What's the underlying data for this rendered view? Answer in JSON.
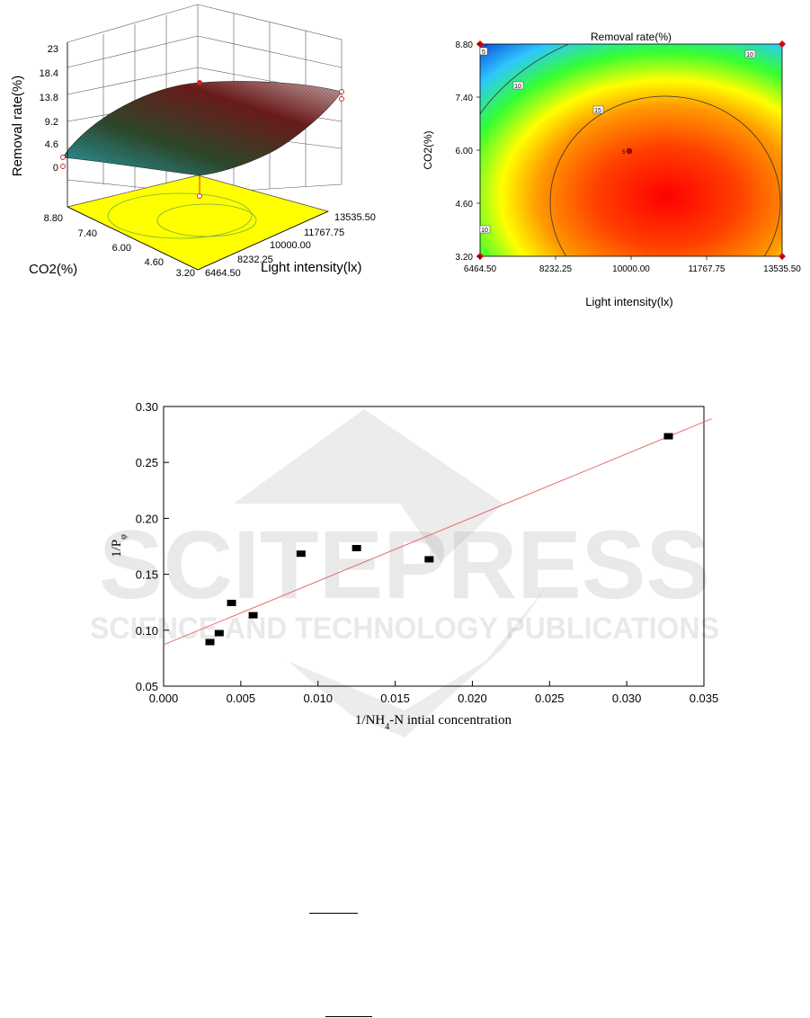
{
  "charts": {
    "surface": {
      "z_label": "Removal rate(%)",
      "z_ticks": [
        "23",
        "18.4",
        "13.8",
        "9.2",
        "4.6",
        "0"
      ],
      "co2_label": "CO2(%)",
      "co2_ticks": [
        "8.80",
        "7.40",
        "6.00",
        "4.60",
        "3.20"
      ],
      "light_label": "Light intensity(lx)",
      "light_ticks": [
        "13535.50",
        "11767.75",
        "10000.00",
        "8232.25",
        "6464.50"
      ],
      "surface_colors": [
        "#2aa6b5",
        "#2e4a2c",
        "#6e1c1c",
        "#c9a7a7"
      ],
      "floor_color": "#ffff00"
    },
    "contour": {
      "title": "Removal rate(%)",
      "x_label": "Light intensity(lx)",
      "y_label": "CO2(%)",
      "x_ticks": [
        "6464.50",
        "8232.25",
        "10000.00",
        "11767.75",
        "13535.50"
      ],
      "y_ticks": [
        "8.80",
        "7.40",
        "6.00",
        "4.60",
        "3.20"
      ],
      "contour_labels": [
        "5",
        "10",
        "10",
        "15",
        "10"
      ],
      "center_label": "5",
      "colors": [
        "#0a4dd8",
        "#2ec7ff",
        "#33ff33",
        "#ffff00",
        "#ff8000",
        "#ff0000"
      ]
    }
  },
  "chart_data": {
    "type": "scatter",
    "title": "",
    "xlabel": "1/NH4-N intial concentration",
    "ylabel": "1/Pφ",
    "xlim": [
      0.0,
      0.035
    ],
    "ylim": [
      0.05,
      0.3
    ],
    "x_ticks": [
      "0.000",
      "0.005",
      "0.010",
      "0.015",
      "0.020",
      "0.025",
      "0.030",
      "0.035"
    ],
    "y_ticks": [
      "0.30",
      "0.25",
      "0.20",
      "0.15",
      "0.10",
      "0.05"
    ],
    "points": [
      {
        "x": 0.003,
        "y": 0.089
      },
      {
        "x": 0.0036,
        "y": 0.097
      },
      {
        "x": 0.0044,
        "y": 0.124
      },
      {
        "x": 0.0058,
        "y": 0.113
      },
      {
        "x": 0.0089,
        "y": 0.168
      },
      {
        "x": 0.0125,
        "y": 0.173
      },
      {
        "x": 0.0172,
        "y": 0.163
      },
      {
        "x": 0.0327,
        "y": 0.273
      }
    ],
    "fit_line": {
      "x": [
        0.0,
        0.0355
      ],
      "y": [
        0.087,
        0.289
      ]
    },
    "marker_color": "#000000",
    "line_color": "#e07070",
    "grid": false
  },
  "watermark": {
    "name": "SCITEPRESS",
    "subtitle": "SCIENCE AND TECHNOLOGY PUBLICATIONS"
  }
}
